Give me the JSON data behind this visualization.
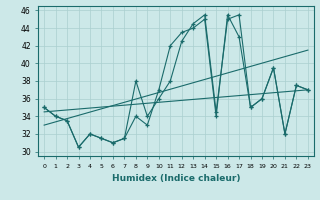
{
  "xlabel": "Humidex (Indice chaleur)",
  "ylabel": "",
  "background_color": "#cce8e8",
  "grid_color": "#aacfcf",
  "line_color": "#1a6b6b",
  "xlim": [
    -0.5,
    23.5
  ],
  "ylim": [
    29.5,
    46.5
  ],
  "xticks": [
    0,
    1,
    2,
    3,
    4,
    5,
    6,
    7,
    8,
    9,
    10,
    11,
    12,
    13,
    14,
    15,
    16,
    17,
    18,
    19,
    20,
    21,
    22,
    23
  ],
  "yticks": [
    30,
    32,
    34,
    36,
    38,
    40,
    42,
    44,
    46
  ],
  "lines": [
    {
      "x": [
        0,
        23
      ],
      "y": [
        33.0,
        41.5
      ]
    },
    {
      "x": [
        0,
        23
      ],
      "y": [
        34.5,
        37.0
      ]
    },
    {
      "x": [
        0,
        1,
        2,
        3,
        4,
        5,
        6,
        7,
        8,
        9,
        10,
        11,
        12,
        13,
        14,
        15,
        16,
        17,
        18,
        19,
        20,
        21,
        22,
        23
      ],
      "y": [
        35,
        34,
        33.5,
        30.5,
        32,
        31.5,
        31,
        31.5,
        38,
        34,
        36,
        38,
        42.5,
        44.5,
        45.5,
        34.5,
        45,
        45.5,
        35,
        36,
        39.5,
        32,
        37.5,
        37
      ]
    },
    {
      "x": [
        0,
        1,
        2,
        3,
        4,
        5,
        6,
        7,
        8,
        9,
        10,
        11,
        12,
        13,
        14,
        15,
        16,
        17,
        18,
        19,
        20,
        21,
        22,
        23
      ],
      "y": [
        35,
        34,
        33.5,
        30.5,
        32,
        31.5,
        31,
        31.5,
        34,
        33,
        37,
        42,
        43.5,
        44,
        45,
        34,
        45.5,
        43,
        35,
        36,
        39.5,
        32,
        37.5,
        37
      ]
    }
  ]
}
